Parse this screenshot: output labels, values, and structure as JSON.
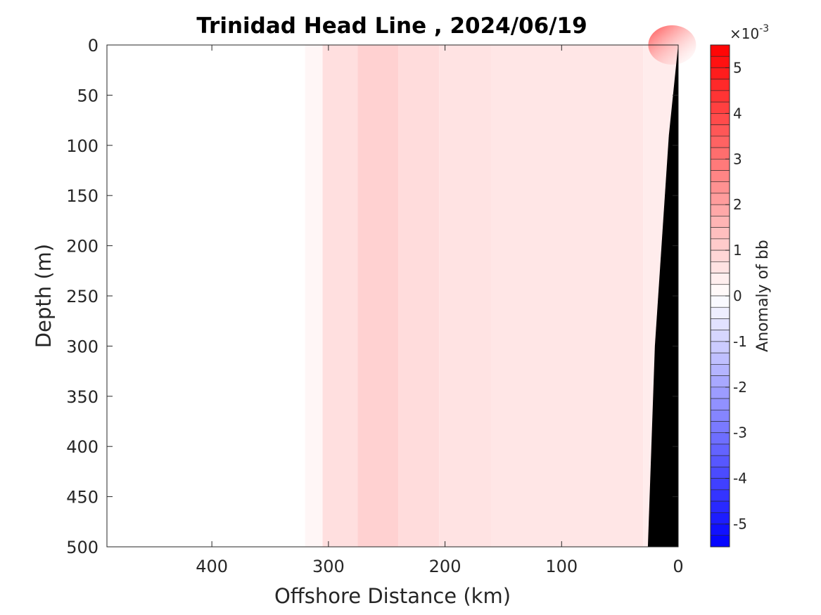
{
  "chart_data": {
    "type": "heatmap",
    "title": "Trinidad Head Line , 2024/06/19",
    "xlabel": "Offshore Distance (km)",
    "ylabel": "Depth (m)",
    "xlim": [
      490,
      0
    ],
    "ylim": [
      0,
      500
    ],
    "x_ticks": [
      400,
      300,
      200,
      100,
      0
    ],
    "x_tick_labels": [
      "400",
      "300",
      "200",
      "100",
      "0"
    ],
    "y_ticks": [
      0,
      50,
      100,
      150,
      200,
      250,
      300,
      350,
      400,
      450,
      500
    ],
    "y_tick_labels": [
      "0",
      "50",
      "100",
      "150",
      "200",
      "250",
      "300",
      "350",
      "400",
      "450",
      "500"
    ],
    "colorbar": {
      "label": "Anomaly of bb",
      "exponent_label": "×10",
      "exponent_power": "-3",
      "range": [
        -5.5,
        5.5
      ],
      "ticks": [
        5,
        4,
        3,
        2,
        1,
        0,
        -1,
        -2,
        -3,
        -4,
        -5
      ],
      "tick_labels": [
        "5",
        "4",
        "3",
        "2",
        "1",
        "0",
        "-1",
        "-2",
        "-3",
        "-4",
        "-5"
      ],
      "n_levels": 44,
      "colors": {
        "max": "#ff0000",
        "zero": "#ffffff",
        "min": "#0000ff"
      }
    },
    "data_extent_km": [
      0,
      320
    ],
    "bands": [
      {
        "x_range": [
          320,
          305
        ],
        "value": 0.2
      },
      {
        "x_range": [
          305,
          275
        ],
        "value": 0.7
      },
      {
        "x_range": [
          275,
          240
        ],
        "value": 1.0
      },
      {
        "x_range": [
          240,
          205
        ],
        "value": 0.75
      },
      {
        "x_range": [
          205,
          160
        ],
        "value": 0.6
      },
      {
        "x_range": [
          160,
          30
        ],
        "value": 0.55
      },
      {
        "x_range": [
          30,
          0
        ],
        "value": 0.4
      }
    ],
    "surface_maximum": {
      "x_km": 10,
      "depth_m": 0,
      "value": 5.2
    },
    "bathymetry": {
      "color": "#000000",
      "points": [
        [
          0,
          0
        ],
        [
          8,
          90
        ],
        [
          20,
          300
        ],
        [
          26,
          500
        ],
        [
          0,
          500
        ]
      ]
    }
  }
}
